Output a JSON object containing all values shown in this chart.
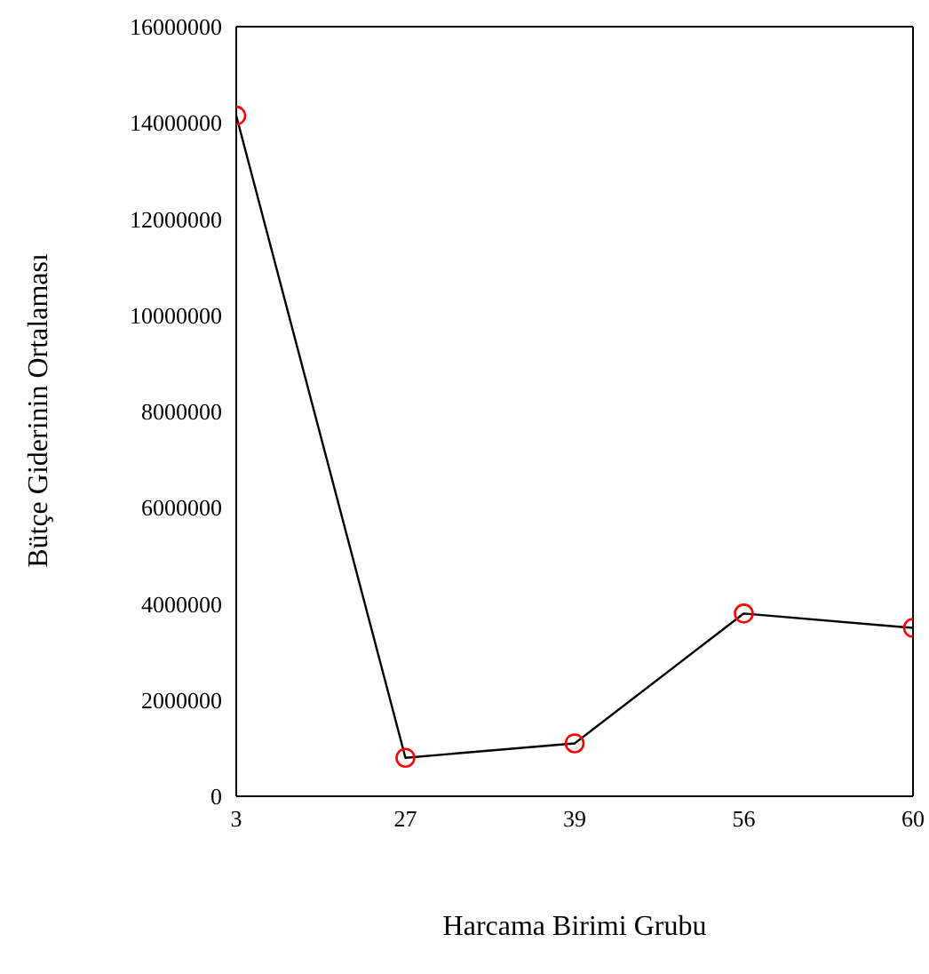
{
  "chart_data": {
    "type": "line",
    "xlabel": "Harcama Birimi Grubu",
    "ylabel": "Bütçe Giderinin Ortalaması",
    "categories": [
      "3",
      "27",
      "39",
      "56",
      "60"
    ],
    "series": [
      {
        "color": "#000000",
        "colors": [
          "#ff0000",
          "#ff0000",
          "#ff0000",
          "#ff0000",
          "#ff0000"
        ],
        "values": [
          14150000,
          800000,
          1100000,
          3800000,
          3500000
        ]
      }
    ],
    "ylim": [
      0,
      16000000
    ],
    "yticks": [
      0,
      2000000,
      4000000,
      6000000,
      8000000,
      10000000,
      12000000,
      14000000,
      16000000
    ],
    "grid": false,
    "legend": false,
    "marker": "circle",
    "line_style": "solid"
  }
}
